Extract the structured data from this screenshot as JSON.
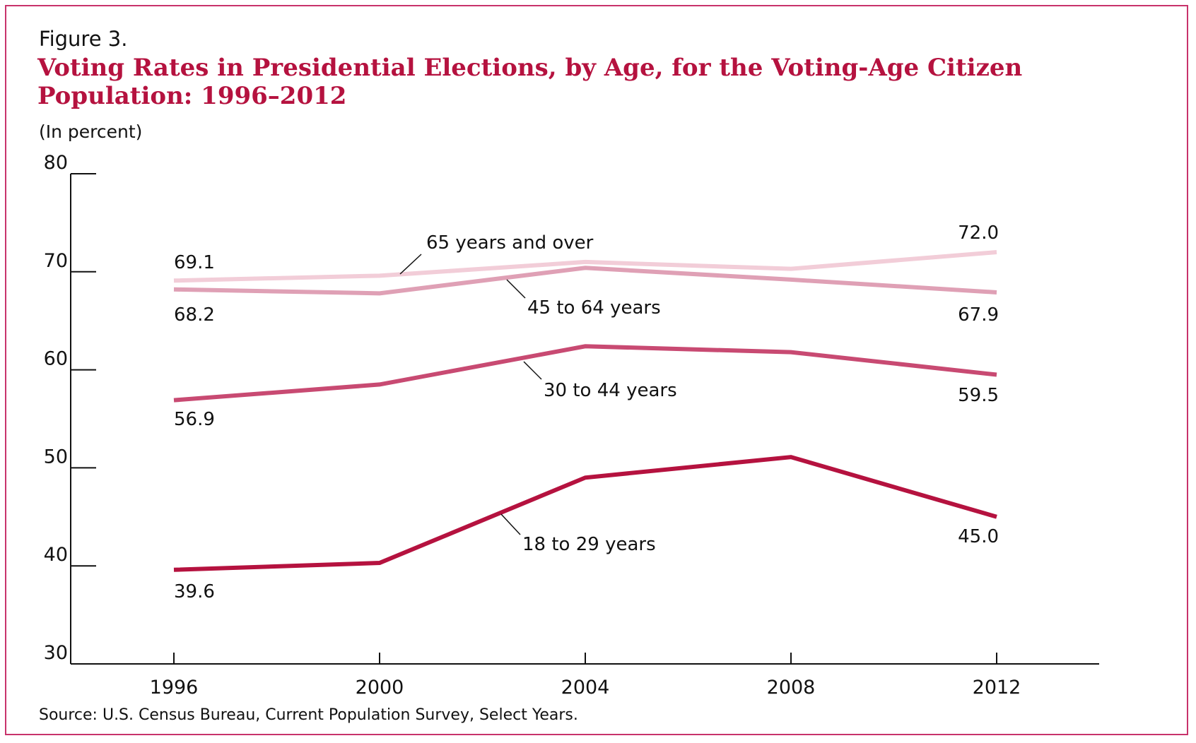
{
  "figure_label": "Figure 3.",
  "title": "Voting Rates in Presidential Elections, by Age, for the Voting-Age Citizen Population: 1996–2012",
  "units": "(In percent)",
  "source": "Source: U.S. Census Bureau, Current Population Survey, Select Years.",
  "chart_data": {
    "type": "line",
    "title": "Voting Rates in Presidential Elections, by Age, for the Voting-Age Citizen Population: 1996–2012",
    "ylabel": "(In percent)",
    "xlabel": "",
    "x": [
      "1996",
      "2000",
      "2004",
      "2008",
      "2012"
    ],
    "ylim": [
      30,
      80
    ],
    "yticks": [
      30,
      40,
      50,
      60,
      70,
      80
    ],
    "grid": false,
    "legend": "none",
    "series": [
      {
        "name": "65 years and over",
        "values": [
          69.1,
          69.6,
          71.0,
          70.3,
          72.0
        ],
        "color": "#f2cdd8",
        "labels": {
          "start": "69.1",
          "end": "72.0"
        }
      },
      {
        "name": "45 to 64 years",
        "values": [
          68.2,
          67.8,
          70.4,
          69.2,
          67.9
        ],
        "color": "#dfa0b5",
        "labels": {
          "start": "68.2",
          "end": "67.9"
        }
      },
      {
        "name": "30 to 44 years",
        "values": [
          56.9,
          58.5,
          62.4,
          61.8,
          59.5
        ],
        "color": "#c84a72",
        "labels": {
          "start": "56.9",
          "end": "59.5"
        }
      },
      {
        "name": "18 to 29 years",
        "values": [
          39.6,
          40.3,
          49.0,
          51.1,
          45.0
        ],
        "color": "#b5123f",
        "labels": {
          "start": "39.6",
          "end": "45.0"
        }
      }
    ]
  }
}
